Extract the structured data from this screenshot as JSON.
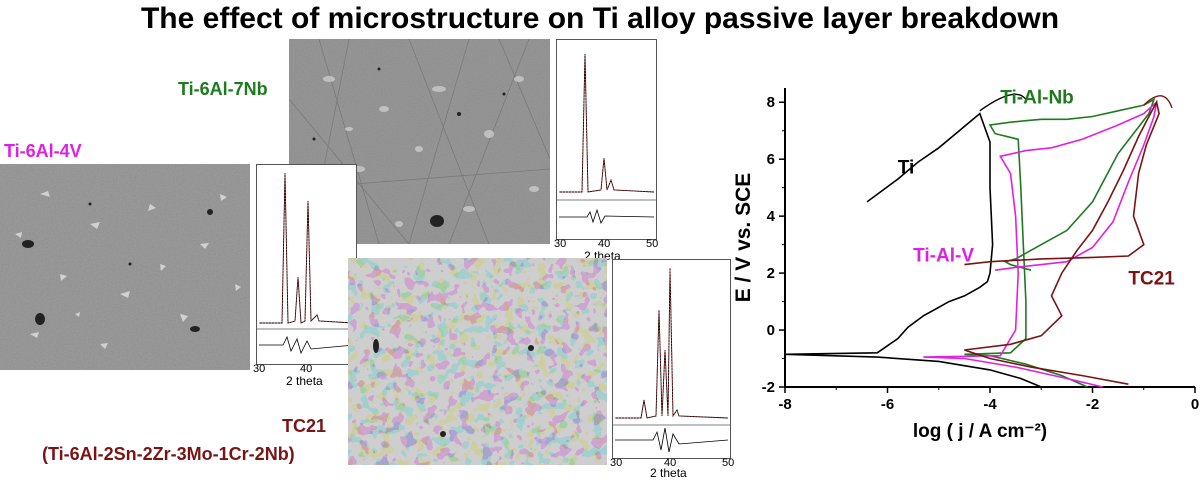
{
  "title": "The effect of microstructure on Ti alloy passive layer breakdown",
  "alloys": {
    "ti6al7nb": {
      "name": "Ti-6Al-7Nb",
      "color": "#1e7a1e"
    },
    "ti6al4v": {
      "name": "Ti-6Al-4V",
      "color": "#e020e0"
    },
    "tc21": {
      "name": "TC21",
      "composition": "(Ti-6Al-2Sn-2Zr-3Mo-1Cr-2Nb)",
      "color": "#7a1414"
    }
  },
  "xrd": {
    "xlabel": "2 theta",
    "ticks": [
      "30",
      "40",
      "50"
    ]
  },
  "chart_data": {
    "type": "line",
    "xlabel": "log ( j / A cm⁻²)",
    "ylabel": "E / V vs. SCE",
    "xlim": [
      -8,
      0
    ],
    "ylim": [
      -2,
      8.5
    ],
    "xticks": [
      -8,
      -6,
      -4,
      -2,
      0
    ],
    "yticks": [
      -2,
      0,
      2,
      4,
      6,
      8
    ],
    "grid": false,
    "series": [
      {
        "name": "Ti",
        "color": "#000000",
        "x": [
          -3.0,
          -3.4,
          -4.0,
          -5.0,
          -6.2,
          -8.0,
          -6.2,
          -5.8,
          -5.6,
          -5.3,
          -5.0,
          -4.8,
          -4.5,
          -4.2,
          -4.05,
          -4.0,
          -3.95,
          -4.0,
          -4.0,
          -4.2,
          -4.6,
          -5.0,
          -5.4,
          -5.8,
          -6.1,
          -6.4
        ],
        "y": [
          -2.0,
          -1.7,
          -1.4,
          -1.1,
          -0.95,
          -0.85,
          -0.8,
          -0.3,
          0.1,
          0.5,
          0.8,
          1.0,
          1.2,
          1.5,
          1.7,
          2.0,
          3.0,
          5.0,
          6.6,
          7.6,
          7.0,
          6.4,
          5.9,
          5.3,
          4.9,
          4.5
        ]
      },
      {
        "name": "Ti-Al-Nb",
        "color": "#1e7a1e",
        "x": [
          -2.1,
          -2.6,
          -3.3,
          -4.0,
          -4.5,
          -3.6,
          -3.3,
          -3.3,
          -3.35,
          -3.4,
          -3.45,
          -3.9,
          -4.0,
          -3.6,
          -3.3,
          -3.0,
          -2.5,
          -2.0,
          -1.5,
          -1.0,
          -0.8,
          -0.9,
          -1.5,
          -2.0,
          -2.5,
          -3.0,
          -3.3,
          -3.5,
          -3.7,
          -3.6,
          -3.4,
          -3.2
        ],
        "y": [
          -2.0,
          -1.6,
          -1.2,
          -0.9,
          -0.85,
          -0.8,
          -0.3,
          1.0,
          3.0,
          5.0,
          6.7,
          6.9,
          7.2,
          7.3,
          7.35,
          7.4,
          7.4,
          7.5,
          7.7,
          7.9,
          8.1,
          7.6,
          6.2,
          4.5,
          3.5,
          3.0,
          2.7,
          2.5,
          2.4,
          2.3,
          2.2,
          2.1
        ]
      },
      {
        "name": "Ti-Al-V",
        "color": "#e020e0",
        "x": [
          -1.8,
          -2.5,
          -3.5,
          -4.5,
          -5.3,
          -3.8,
          -3.5,
          -3.45,
          -3.5,
          -3.6,
          -3.8,
          -3.3,
          -2.8,
          -2.2,
          -1.5,
          -1.0,
          -0.75,
          -0.8,
          -1.0,
          -1.3,
          -1.6,
          -2.0,
          -2.5,
          -3.0,
          -3.5,
          -3.9
        ],
        "y": [
          -2.0,
          -1.7,
          -1.3,
          -1.0,
          -0.95,
          -0.9,
          0.0,
          2.0,
          4.0,
          5.5,
          6.1,
          6.3,
          6.4,
          6.7,
          7.2,
          7.6,
          8.0,
          7.5,
          6.5,
          5.2,
          3.8,
          2.9,
          2.4,
          2.3,
          2.2,
          2.1
        ]
      },
      {
        "name": "TC21",
        "color": "#7a1414",
        "x": [
          -1.3,
          -2.2,
          -3.2,
          -4.0,
          -4.5,
          -3.6,
          -3.0,
          -2.6,
          -2.8,
          -2.6,
          -2.3,
          -2.0,
          -1.7,
          -1.4,
          -1.1,
          -0.9,
          -0.75,
          -0.7,
          -0.95,
          -1.1,
          -1.2,
          -1.0,
          -1.3,
          -2.0,
          -3.0,
          -4.0,
          -4.5
        ],
        "y": [
          -1.9,
          -1.6,
          -1.3,
          -1.0,
          -0.7,
          -0.5,
          -0.2,
          0.5,
          1.2,
          2.0,
          2.8,
          3.5,
          4.5,
          5.6,
          6.8,
          7.5,
          8.0,
          7.6,
          6.5,
          5.5,
          4.0,
          3.0,
          2.6,
          2.55,
          2.5,
          2.4,
          2.3
        ]
      }
    ],
    "annotations": [
      "Ti",
      "Ti-Al-Nb",
      "Ti-Al-V",
      "TC21"
    ]
  }
}
